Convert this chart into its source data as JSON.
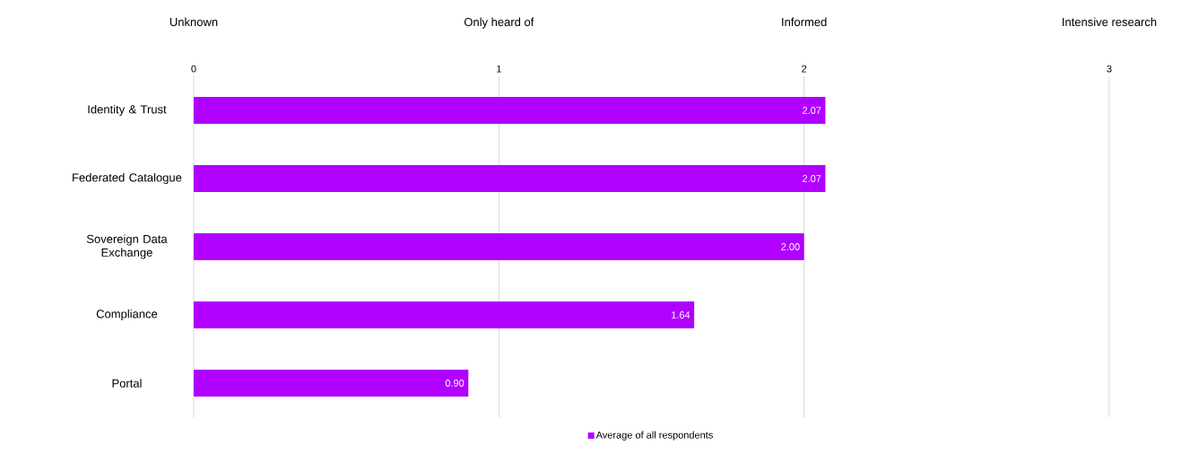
{
  "chart_data": {
    "type": "bar",
    "orientation": "horizontal",
    "categories": [
      "Identity & Trust",
      "Federated Catalogue",
      "Sovereign Data Exchange",
      "Compliance",
      "Portal"
    ],
    "series": [
      {
        "name": "Average of all respondents",
        "color": "#b000ff",
        "values": [
          2.07,
          2.07,
          2.0,
          1.64,
          0.9
        ],
        "value_labels": [
          "2.07",
          "2.07",
          "2.00",
          "1.64",
          "0.90"
        ]
      }
    ],
    "xlim": [
      0,
      3
    ],
    "xticks": [
      0,
      1,
      2,
      3
    ],
    "annotations": [
      "Unknown",
      "Only heard of",
      "Informed",
      "Intensive research"
    ],
    "grid": "x",
    "legend": "bottom"
  }
}
